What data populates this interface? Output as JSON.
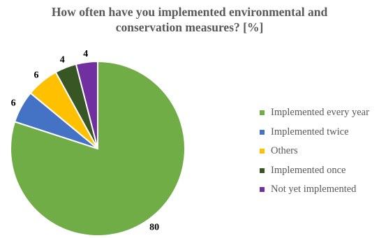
{
  "chart_data": {
    "type": "pie",
    "title_lines": [
      "How often have you implemented environmental and",
      "conservation measures? [%]"
    ],
    "slices": [
      {
        "name": "Implemented every year",
        "value": 80,
        "label": "80",
        "color": "#70AD47"
      },
      {
        "name": "Implemented twice",
        "value": 6,
        "label": "6",
        "color": "#4472C4"
      },
      {
        "name": "Others",
        "value": 6,
        "label": "6",
        "color": "#FFC000"
      },
      {
        "name": "Implemented once",
        "value": 4,
        "label": "4",
        "color": "#375623"
      },
      {
        "name": "Not yet implemented",
        "value": 4,
        "label": "4",
        "color": "#7030A0"
      }
    ],
    "start_at": "top",
    "direction": "clockwise",
    "legend_position": "right"
  }
}
